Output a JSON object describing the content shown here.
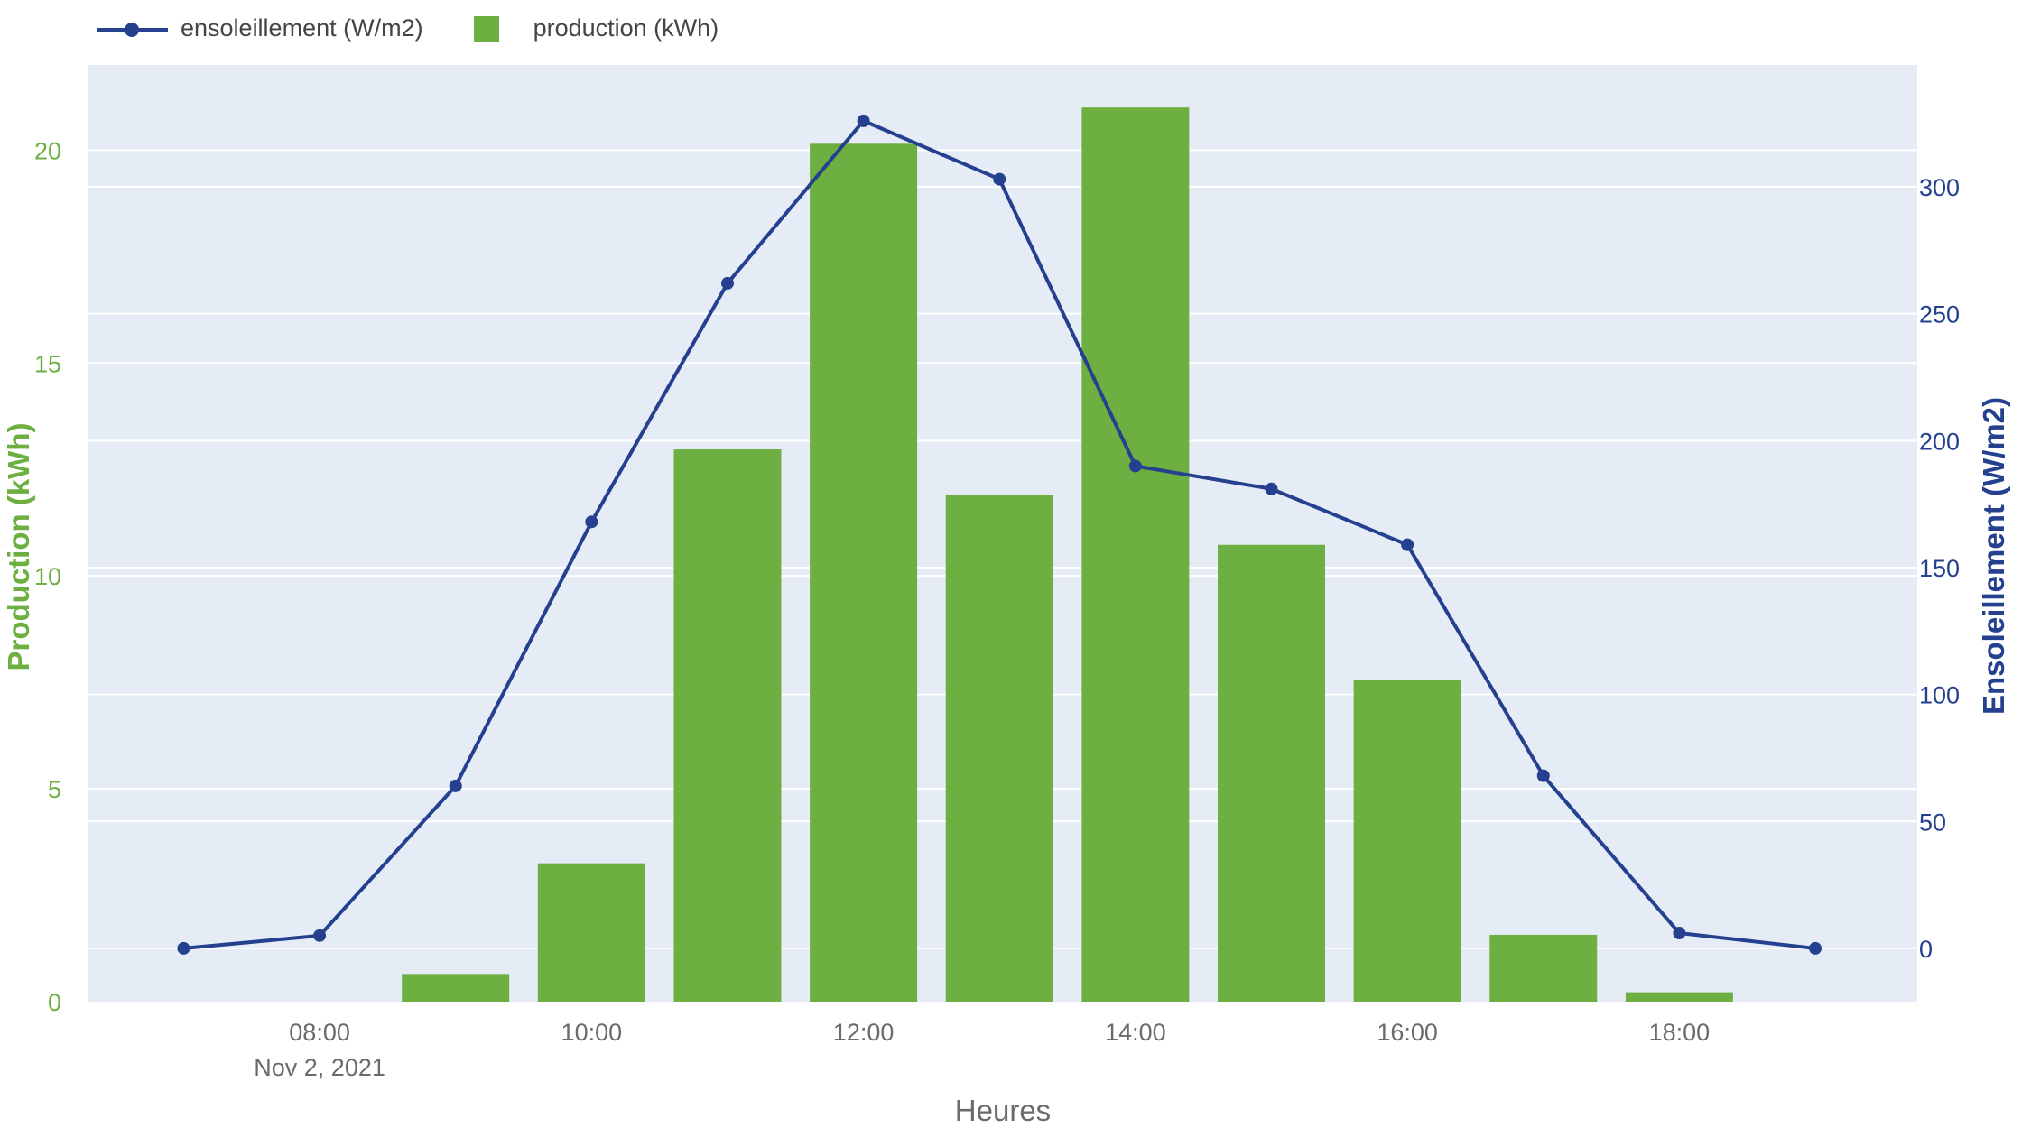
{
  "colors": {
    "plot_bg": "#e5ecf6",
    "grid": "#ffffff",
    "bar": "#6daf41",
    "line": "#24408e",
    "left_axis": "#6daf41",
    "right_axis": "#24408e",
    "text": "#6b6b6b"
  },
  "legend": {
    "line_label": "ensoleillement (W/m2)",
    "bar_label": "production (kWh)"
  },
  "chart_data": {
    "type": "bar+line",
    "xlabel": "Heures",
    "date_label": "Nov 2, 2021",
    "x_tick_labels": [
      "08:00",
      "10:00",
      "12:00",
      "14:00",
      "16:00",
      "18:00"
    ],
    "x_tick_hours": [
      8,
      10,
      12,
      14,
      16,
      18
    ],
    "xlim_hours": [
      6.3,
      19.75
    ],
    "y_left": {
      "label": "Production (kWh)",
      "range": [
        0,
        22
      ],
      "ticks": [
        0,
        5,
        10,
        15,
        20
      ]
    },
    "y_right": {
      "label": "Ensoleillement (W/m2)",
      "range": [
        -21,
        348
      ],
      "ticks": [
        0,
        50,
        100,
        150,
        200,
        250,
        300
      ]
    },
    "series": [
      {
        "name": "production (kWh)",
        "type": "bar",
        "axis": "left",
        "x_hours": [
          8,
          9,
          10,
          11,
          12,
          13,
          14,
          15,
          16,
          17,
          18
        ],
        "values": [
          0.0,
          0.65,
          3.25,
          12.97,
          20.15,
          11.9,
          21.0,
          10.73,
          7.55,
          1.57,
          0.22
        ]
      },
      {
        "name": "ensoleillement (W/m2)",
        "type": "line",
        "axis": "right",
        "x_hours": [
          7,
          8,
          9,
          10,
          11,
          12,
          13,
          14,
          15,
          16,
          17,
          18,
          19
        ],
        "values": [
          0,
          5,
          64,
          168,
          262,
          326,
          303,
          190,
          181,
          159,
          68,
          6,
          0
        ]
      }
    ]
  }
}
